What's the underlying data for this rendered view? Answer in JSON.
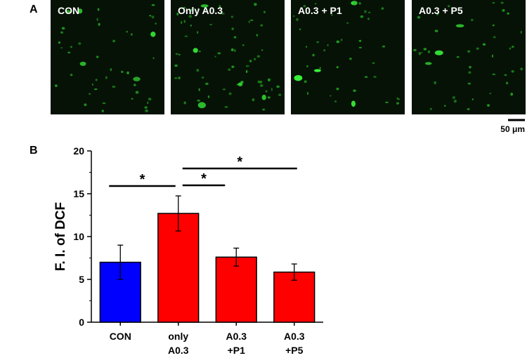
{
  "figure": {
    "panel_a": {
      "label": "A",
      "images": [
        "CON",
        "Only A0.3",
        "A0.3 + P1",
        "A0.3 + P5"
      ],
      "scale_bar": "50 μm"
    },
    "panel_b": {
      "label": "B"
    }
  },
  "chart_data": {
    "type": "bar",
    "ylabel": "F. I. of DCF",
    "categories": [
      "CON",
      "only\nA0.3",
      "A0.3\n+P1",
      "A0.3\n+P5"
    ],
    "values": [
      7.0,
      12.7,
      7.6,
      5.85
    ],
    "errors": [
      2.0,
      2.05,
      1.05,
      0.95
    ],
    "colors": [
      "#0000ff",
      "#ff0000",
      "#ff0000",
      "#ff0000"
    ],
    "ylim": [
      0,
      20
    ],
    "yticks": [
      0,
      5,
      10,
      15,
      20
    ],
    "yminorticks": [
      2.5,
      7.5,
      12.5,
      17.5
    ],
    "significance": [
      {
        "between": [
          0,
          1
        ],
        "label": "*"
      },
      {
        "between": [
          1,
          2
        ],
        "label": "*"
      },
      {
        "between": [
          1,
          3
        ],
        "label": "*"
      }
    ]
  }
}
